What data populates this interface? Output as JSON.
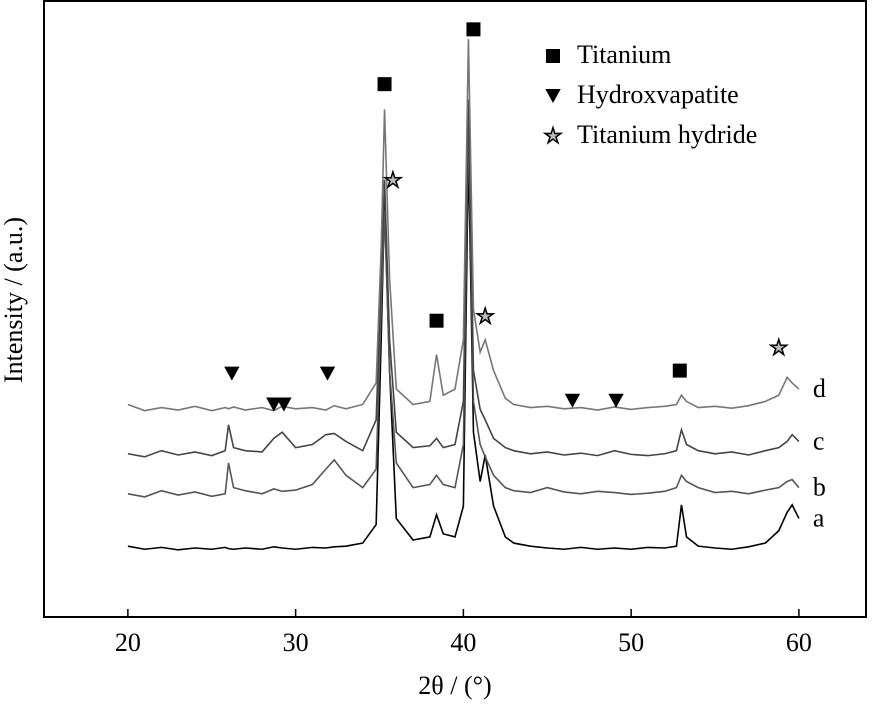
{
  "chart_data": {
    "type": "line",
    "xlabel": "2θ / (°)",
    "ylabel": "Intensity / (a.u.)",
    "xlim": [
      15,
      64
    ],
    "xticks": [
      20,
      30,
      40,
      50,
      60
    ],
    "ylim": [
      0,
      100
    ],
    "x": [
      20,
      21,
      22,
      23,
      24,
      25,
      25.8,
      26,
      26.3,
      27,
      28,
      28.7,
      29.2,
      30,
      31,
      31.8,
      32.3,
      33,
      34,
      34.8,
      35.1,
      35.3,
      35.6,
      36,
      37,
      38,
      38.4,
      38.8,
      39.5,
      40,
      40.3,
      40.6,
      41,
      41.3,
      41.8,
      42.5,
      43,
      44,
      45,
      46,
      47,
      48,
      49,
      50,
      51,
      52,
      52.7,
      53,
      53.3,
      54,
      55,
      56,
      57,
      58,
      58.8,
      59.3,
      59.6,
      60
    ],
    "series": [
      {
        "name": "a",
        "color": "#000000",
        "values": [
          11.5,
          11,
          11.3,
          10.9,
          11.2,
          11,
          11.3,
          11.1,
          11,
          11.2,
          11,
          11.4,
          11.2,
          11,
          11.3,
          11.2,
          11.4,
          11.5,
          12,
          15,
          45,
          67.8,
          40,
          16,
          12.5,
          13,
          16.6,
          13.5,
          13,
          18,
          75.9,
          30,
          22,
          26.3,
          18,
          13,
          12,
          11.5,
          11.2,
          11,
          11.3,
          11,
          11.2,
          11,
          11.3,
          11.2,
          11.5,
          18.2,
          13,
          11.5,
          11.2,
          11,
          11.4,
          12,
          14,
          17,
          18.2,
          16
        ]
      },
      {
        "name": "b",
        "color": "#555555",
        "values": [
          20,
          19.5,
          20.5,
          19.8,
          20.3,
          19.6,
          20,
          25,
          21,
          20.5,
          20,
          20.8,
          20.4,
          20.6,
          21.5,
          24,
          25.5,
          23,
          21,
          24,
          50,
          66,
          40,
          25,
          21,
          21.5,
          23,
          21.5,
          21,
          28,
          80.8,
          35,
          28,
          26,
          23,
          21,
          20.5,
          20.2,
          21,
          20.3,
          20,
          20.4,
          20.2,
          19.9,
          20.1,
          20.4,
          21,
          23,
          22,
          21,
          20.2,
          20.4,
          20,
          20.6,
          21,
          22,
          22.3,
          21
        ]
      },
      {
        "name": "c",
        "color": "#444444",
        "values": [
          26.5,
          26,
          27,
          26.3,
          26.8,
          26.2,
          27,
          31.2,
          27.5,
          27,
          26.8,
          29,
          30,
          27.5,
          28,
          29.6,
          29.8,
          28.5,
          27,
          32,
          55,
          71,
          45,
          30,
          27.5,
          27.8,
          29,
          27.5,
          28,
          35,
          84,
          40,
          33.7,
          32,
          29,
          27.5,
          27,
          26.5,
          26.8,
          26.3,
          26.6,
          26.2,
          27,
          26.4,
          26.2,
          26.5,
          27,
          30.4,
          28,
          27,
          26.5,
          26.8,
          26.3,
          27,
          27.5,
          28.5,
          29.6,
          28.5
        ]
      },
      {
        "name": "d",
        "color": "#777777",
        "values": [
          34.5,
          33.5,
          34,
          33.6,
          34.2,
          33.5,
          34,
          33.8,
          34.1,
          33.6,
          34,
          33.5,
          34.2,
          33.8,
          34,
          33.6,
          34.3,
          33.8,
          34.5,
          38,
          60,
          82.4,
          55,
          37,
          34.5,
          35,
          42.6,
          36,
          37,
          45,
          93.8,
          50,
          43,
          45,
          40,
          35.5,
          34.5,
          34,
          34.2,
          33.8,
          34,
          33.6,
          34.1,
          33.7,
          34,
          34.2,
          34.5,
          36,
          35,
          34,
          34.2,
          33.9,
          34.3,
          35,
          36,
          38.9,
          38,
          37
        ]
      }
    ],
    "markers": [
      {
        "symbol": "square",
        "x": 35.3,
        "y": 86.5
      },
      {
        "symbol": "square",
        "x": 40.6,
        "y": 95.4
      },
      {
        "symbol": "square",
        "x": 38.4,
        "y": 48.1
      },
      {
        "symbol": "square",
        "x": 52.9,
        "y": 40
      },
      {
        "symbol": "triangle",
        "x": 26.2,
        "y": 39.5
      },
      {
        "symbol": "triangle",
        "x": 28.7,
        "y": 34.5
      },
      {
        "symbol": "triangle",
        "x": 29.3,
        "y": 34.5
      },
      {
        "symbol": "triangle",
        "x": 31.9,
        "y": 39.5
      },
      {
        "symbol": "triangle",
        "x": 46.5,
        "y": 35.1
      },
      {
        "symbol": "triangle",
        "x": 49.1,
        "y": 35.1
      },
      {
        "symbol": "star",
        "x": 35.8,
        "y": 70.9
      },
      {
        "symbol": "star",
        "x": 41.3,
        "y": 48.8
      },
      {
        "symbol": "star",
        "x": 58.8,
        "y": 43.7
      }
    ],
    "legend": [
      {
        "symbol": "square",
        "label": "Titanium"
      },
      {
        "symbol": "triangle",
        "label": "Hydroxvapatite"
      },
      {
        "symbol": "star",
        "label": "Titanium hydride"
      }
    ]
  }
}
